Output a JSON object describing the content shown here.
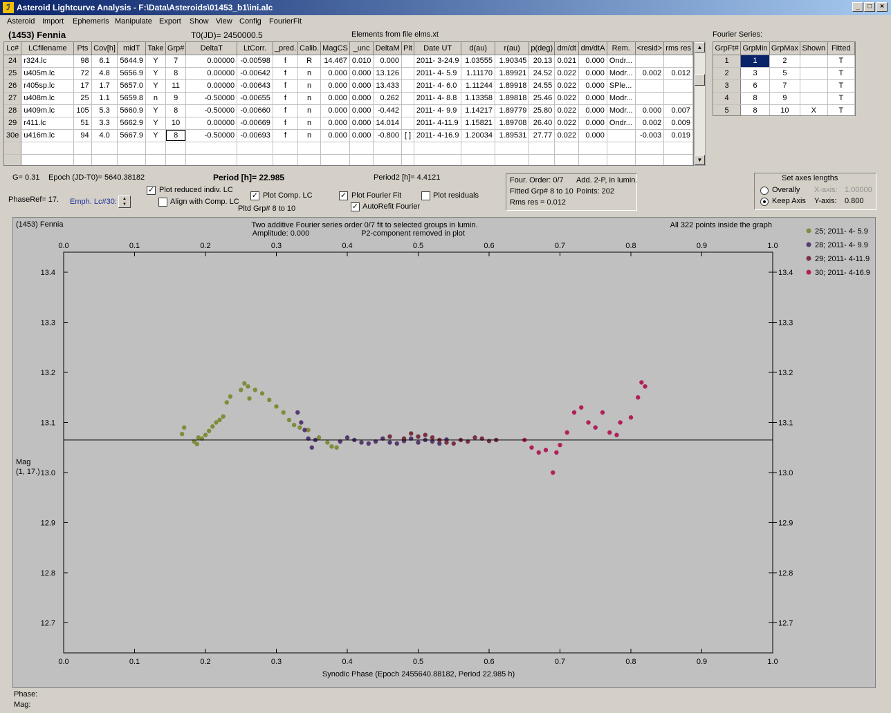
{
  "window": {
    "title": "Asteroid Lightcurve Analysis - F:\\Data\\Asteroids\\01453_b1\\ini.alc",
    "icon_glyph": "ℐ",
    "min_btn": "_",
    "max_btn": "□",
    "close_btn": "×"
  },
  "menu": [
    "Asteroid",
    "Import",
    "Ephemeris",
    "Manipulate",
    "Export",
    "Show",
    "View",
    "Config",
    "FourierFit"
  ],
  "header": {
    "asteroid": "(1453) Fennia",
    "t0": "T0(JD)= 2450000.5",
    "elements": "Elements from file elms.xt",
    "fourier_series_label": "Fourier Series:"
  },
  "lc_table": {
    "columns": [
      "Lc#",
      "LCfilename",
      "Pts",
      "Cov[h]",
      "midT",
      "Take",
      "Grp#",
      "DeltaT",
      "LtCorr.",
      "_pred.",
      "Calib.",
      "MagCS",
      "_unc",
      "DeltaM",
      "Plt",
      "Date UT",
      "d(au)",
      "r(au)",
      "p(deg)",
      "dm/dt",
      "dm/dtA",
      "Rem.",
      "<resid>",
      "rms res"
    ],
    "rows": [
      [
        "24",
        "r324.lc",
        "98",
        "6.1",
        "5644.9",
        "Y",
        "7",
        "0.00000",
        "-0.00598",
        "f",
        "R",
        "14.467",
        "0.010",
        "0.000",
        "",
        "2011- 3-24.9",
        "1.03555",
        "1.90345",
        "20.13",
        "0.021",
        "0.000",
        "Ondr...",
        "",
        ""
      ],
      [
        "25",
        "u405m.lc",
        "72",
        "4.8",
        "5656.9",
        "Y",
        "8",
        "0.00000",
        "-0.00642",
        "f",
        "n",
        "0.000",
        "0.000",
        "13.126",
        "",
        "2011- 4- 5.9",
        "1.11170",
        "1.89921",
        "24.52",
        "0.022",
        "0.000",
        "Modr...",
        "0.002",
        "0.012"
      ],
      [
        "26",
        "r405sp.lc",
        "17",
        "1.7",
        "5657.0",
        "Y",
        "11",
        "0.00000",
        "-0.00643",
        "f",
        "n",
        "0.000",
        "0.000",
        "13.433",
        "",
        "2011- 4- 6.0",
        "1.11244",
        "1.89918",
        "24.55",
        "0.022",
        "0.000",
        "SPle...",
        "",
        ""
      ],
      [
        "27",
        "u408m.lc",
        "25",
        "1.1",
        "5659.8",
        "n",
        "9",
        "-0.50000",
        "-0.00655",
        "f",
        "n",
        "0.000",
        "0.000",
        "0.262",
        "",
        "2011- 4- 8.8",
        "1.13358",
        "1.89818",
        "25.46",
        "0.022",
        "0.000",
        "Modr...",
        "",
        ""
      ],
      [
        "28",
        "u409m.lc",
        "105",
        "5.3",
        "5660.9",
        "Y",
        "8",
        "-0.50000",
        "-0.00660",
        "f",
        "n",
        "0.000",
        "0.000",
        "-0.442",
        "",
        "2011- 4- 9.9",
        "1.14217",
        "1.89779",
        "25.80",
        "0.022",
        "0.000",
        "Modr...",
        "0.000",
        "0.007"
      ],
      [
        "29",
        "r411.lc",
        "51",
        "3.3",
        "5662.9",
        "Y",
        "10",
        "0.00000",
        "-0.00669",
        "f",
        "n",
        "0.000",
        "0.000",
        "14.014",
        "",
        "2011- 4-11.9",
        "1.15821",
        "1.89708",
        "26.40",
        "0.022",
        "0.000",
        "Ondr...",
        "0.002",
        "0.009"
      ],
      [
        "30e",
        "u416m.lc",
        "94",
        "4.0",
        "5667.9",
        "Y",
        "8",
        "-0.50000",
        "-0.00693",
        "f",
        "n",
        "0.000",
        "0.000",
        "-0.800",
        "[ ]",
        "2011- 4-16.9",
        "1.20034",
        "1.89531",
        "27.77",
        "0.022",
        "0.000",
        "",
        "-0.003",
        "0.019"
      ]
    ]
  },
  "fs_table": {
    "columns": [
      "GrpFt#",
      "GrpMin",
      "GrpMax",
      "Shown",
      "Fitted"
    ],
    "rows": [
      [
        "1",
        "1",
        "2",
        "",
        "T"
      ],
      [
        "2",
        "3",
        "5",
        "",
        "T"
      ],
      [
        "3",
        "6",
        "7",
        "",
        "T"
      ],
      [
        "4",
        "8",
        "9",
        "",
        "T"
      ],
      [
        "5",
        "8",
        "10",
        "X",
        "T"
      ]
    ]
  },
  "controls": {
    "g": "G= 0.31",
    "epoch": "Epoch (JD-T0)= 5640.38182",
    "period": "Period [h]= 22.985",
    "period2": "Period2 [h]= 4.4121",
    "phaseref": "PhaseRef= 17.",
    "emph": "Emph. Lc#30:",
    "plot_reduced": "Plot reduced indiv. LC",
    "align_comp": "Align with Comp. LC",
    "plot_comp": "Plot Comp. LC",
    "pltd_grp": "Pltd Grp#  8  to  10",
    "plot_fourier": "Plot Fourier Fit",
    "autorefit": "AutoRefit Fourier",
    "plot_residuals": "Plot residuals",
    "check_mark": "✓",
    "fit_info": {
      "line1a": "Four. Order:  0/7",
      "line1b": "Add. 2-P, in lumin.",
      "line2a": "Fitted Grp# 8 to 10",
      "line2b": "Points: 202",
      "line3": "Rms res     = 0.012"
    },
    "axes": {
      "title": "Set axes lengths",
      "overally": "Overally",
      "keep": "Keep Axis",
      "x_label": "X-axis:",
      "x_value": "1.00000",
      "y_label": "Y-axis:",
      "y_value": "0.800"
    }
  },
  "graph": {
    "object": "(1453) Fennia",
    "caption1": "Two additive Fourier series order 0/7 fit to selected groups in lumin.",
    "caption2": "Amplitude: 0.000",
    "caption3": "P2-component removed in plot",
    "points_note": "All 322 points inside the graph",
    "y_title1": "Mag",
    "y_title2": "(1, 17.)",
    "legend": [
      {
        "label": "25; 2011- 4- 5.9",
        "color": "#7f8c3a"
      },
      {
        "label": "28; 2011- 4- 9.9",
        "color": "#553a70"
      },
      {
        "label": "29; 2011- 4-11.9",
        "color": "#7a3044"
      },
      {
        "label": "30; 2011- 4-16.9",
        "color": "#b0205a"
      }
    ]
  },
  "chart_data": {
    "type": "scatter",
    "xlabel": "Synodic Phase (Epoch 2455640.88182, Period 22.985 h)",
    "ylabel": "Mag",
    "xlim": [
      0.0,
      1.0
    ],
    "ylim": [
      13.44,
      12.64
    ],
    "y_inverted": true,
    "x_ticks": [
      "0.0",
      "0.1",
      "0.2",
      "0.3",
      "0.4",
      "0.5",
      "0.6",
      "0.7",
      "0.8",
      "0.9",
      "1.0"
    ],
    "y_ticks": [
      "12.7",
      "12.8",
      "12.9",
      "13.0",
      "13.1",
      "13.2",
      "13.3",
      "13.4"
    ],
    "fit_line": 13.065,
    "series": [
      {
        "name": "25; 2011- 4- 5.9",
        "color": "#7f8c3a",
        "points": [
          [
            0.167,
            13.077
          ],
          [
            0.17,
            13.09
          ],
          [
            0.184,
            13.062
          ],
          [
            0.188,
            13.057
          ],
          [
            0.19,
            13.07
          ],
          [
            0.195,
            13.068
          ],
          [
            0.2,
            13.075
          ],
          [
            0.205,
            13.083
          ],
          [
            0.21,
            13.092
          ],
          [
            0.215,
            13.1
          ],
          [
            0.22,
            13.105
          ],
          [
            0.225,
            13.112
          ],
          [
            0.23,
            13.14
          ],
          [
            0.235,
            13.152
          ],
          [
            0.25,
            13.165
          ],
          [
            0.255,
            13.178
          ],
          [
            0.26,
            13.172
          ],
          [
            0.262,
            13.148
          ],
          [
            0.27,
            13.165
          ],
          [
            0.28,
            13.158
          ],
          [
            0.29,
            13.145
          ],
          [
            0.3,
            13.132
          ],
          [
            0.31,
            13.12
          ],
          [
            0.318,
            13.105
          ],
          [
            0.325,
            13.095
          ],
          [
            0.333,
            13.09
          ],
          [
            0.345,
            13.085
          ],
          [
            0.36,
            13.07
          ],
          [
            0.372,
            13.06
          ],
          [
            0.378,
            13.052
          ],
          [
            0.385,
            13.05
          ]
        ]
      },
      {
        "name": "28; 2011- 4- 9.9",
        "color": "#553a70",
        "points": [
          [
            0.33,
            13.12
          ],
          [
            0.335,
            13.1
          ],
          [
            0.34,
            13.085
          ],
          [
            0.345,
            13.068
          ],
          [
            0.35,
            13.05
          ],
          [
            0.355,
            13.065
          ],
          [
            0.39,
            13.062
          ],
          [
            0.4,
            13.07
          ],
          [
            0.41,
            13.065
          ],
          [
            0.42,
            13.06
          ],
          [
            0.43,
            13.058
          ],
          [
            0.44,
            13.062
          ],
          [
            0.45,
            13.068
          ],
          [
            0.46,
            13.06
          ],
          [
            0.47,
            13.058
          ],
          [
            0.48,
            13.063
          ],
          [
            0.49,
            13.068
          ],
          [
            0.5,
            13.06
          ],
          [
            0.51,
            13.065
          ],
          [
            0.52,
            13.062
          ],
          [
            0.53,
            13.058
          ],
          [
            0.54,
            13.066
          ]
        ]
      },
      {
        "name": "29; 2011- 4-11.9",
        "color": "#7a3044",
        "points": [
          [
            0.46,
            13.072
          ],
          [
            0.48,
            13.068
          ],
          [
            0.49,
            13.078
          ],
          [
            0.5,
            13.072
          ],
          [
            0.51,
            13.075
          ],
          [
            0.52,
            13.07
          ],
          [
            0.53,
            13.065
          ],
          [
            0.54,
            13.06
          ],
          [
            0.55,
            13.058
          ],
          [
            0.56,
            13.065
          ],
          [
            0.57,
            13.062
          ],
          [
            0.58,
            13.07
          ],
          [
            0.59,
            13.068
          ],
          [
            0.6,
            13.063
          ],
          [
            0.61,
            13.065
          ]
        ]
      },
      {
        "name": "30; 2011- 4-16.9",
        "color": "#b0205a",
        "points": [
          [
            0.65,
            13.065
          ],
          [
            0.66,
            13.05
          ],
          [
            0.67,
            13.04
          ],
          [
            0.68,
            13.045
          ],
          [
            0.69,
            13.0
          ],
          [
            0.695,
            13.04
          ],
          [
            0.7,
            13.055
          ],
          [
            0.71,
            13.08
          ],
          [
            0.72,
            13.12
          ],
          [
            0.73,
            13.13
          ],
          [
            0.74,
            13.1
          ],
          [
            0.75,
            13.09
          ],
          [
            0.76,
            13.12
          ],
          [
            0.77,
            13.08
          ],
          [
            0.78,
            13.075
          ],
          [
            0.785,
            13.1
          ],
          [
            0.8,
            13.11
          ],
          [
            0.81,
            13.15
          ],
          [
            0.815,
            13.18
          ],
          [
            0.82,
            13.172
          ]
        ]
      }
    ]
  },
  "status": {
    "phase": "Phase:",
    "mag": "Mag:"
  }
}
